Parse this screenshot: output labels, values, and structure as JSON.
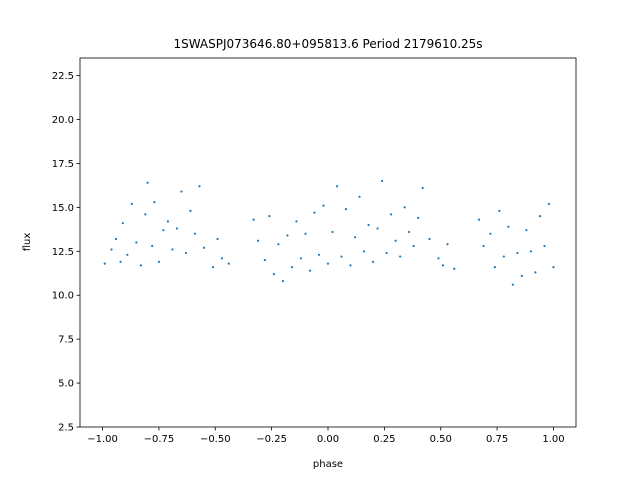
{
  "chart_data": {
    "type": "scatter",
    "title": "1SWASPJ073646.80+095813.6 Period 2179610.25s",
    "xlabel": "phase",
    "ylabel": "flux",
    "xlim": [
      -1.1,
      1.1
    ],
    "ylim": [
      2.5,
      23.5
    ],
    "xticks": [
      -1.0,
      -0.75,
      -0.5,
      -0.25,
      0.0,
      0.25,
      0.5,
      0.75,
      1.0
    ],
    "xtick_labels": [
      "−1.00",
      "−0.75",
      "−0.50",
      "−0.25",
      "0.00",
      "0.25",
      "0.50",
      "0.75",
      "1.00"
    ],
    "yticks": [
      2.5,
      5.0,
      7.5,
      10.0,
      12.5,
      15.0,
      17.5,
      20.0,
      22.5
    ],
    "ytick_labels": [
      "2.5",
      "5.0",
      "7.5",
      "10.0",
      "12.5",
      "15.0",
      "17.5",
      "20.0",
      "22.5"
    ],
    "grid": false,
    "marker_color": "#1f77b4",
    "series": [
      {
        "x": [
          -0.99,
          -0.96,
          -0.94,
          -0.92,
          -0.91,
          -0.89,
          -0.87,
          -0.85,
          -0.83,
          -0.81,
          -0.8,
          -0.78,
          -0.77,
          -0.75,
          -0.73,
          -0.71,
          -0.69,
          -0.67,
          -0.65,
          -0.63,
          -0.61,
          -0.59,
          -0.57,
          -0.55,
          -0.51,
          -0.49,
          -0.47,
          -0.44,
          -0.33,
          -0.31,
          -0.28,
          -0.26,
          -0.24,
          -0.22,
          -0.2,
          -0.18,
          -0.16,
          -0.14,
          -0.12,
          -0.1,
          -0.08,
          -0.06,
          -0.04,
          -0.02,
          0.0,
          0.02,
          0.04,
          0.06,
          0.08,
          0.1,
          0.12,
          0.14,
          0.16,
          0.18,
          0.2,
          0.22,
          0.24,
          0.26,
          0.28,
          0.3,
          0.32,
          0.34,
          0.36,
          0.38,
          0.4,
          0.42,
          0.45,
          0.49,
          0.51,
          0.53,
          0.56,
          0.67,
          0.69,
          0.72,
          0.74,
          0.76,
          0.78,
          0.8,
          0.82,
          0.84,
          0.86,
          0.88,
          0.9,
          0.92,
          0.94,
          0.96,
          0.98,
          1.0
        ],
        "y": [
          11.8,
          12.6,
          13.2,
          11.9,
          14.1,
          12.3,
          15.2,
          13.0,
          11.7,
          14.6,
          16.4,
          12.8,
          15.3,
          11.9,
          13.7,
          14.2,
          12.6,
          13.8,
          15.9,
          12.4,
          14.8,
          13.5,
          16.2,
          12.7,
          11.6,
          13.2,
          12.1,
          11.8,
          14.3,
          13.1,
          12.0,
          14.5,
          11.2,
          12.9,
          10.8,
          13.4,
          11.6,
          14.2,
          12.1,
          13.5,
          11.4,
          14.7,
          12.3,
          15.1,
          11.8,
          13.6,
          16.2,
          12.2,
          14.9,
          11.7,
          13.3,
          15.6,
          12.5,
          14.0,
          11.9,
          13.8,
          16.5,
          12.4,
          14.6,
          13.1,
          12.2,
          15.0,
          13.6,
          12.8,
          14.4,
          16.1,
          13.2,
          12.1,
          11.7,
          12.9,
          11.5,
          14.3,
          12.8,
          13.5,
          11.6,
          14.8,
          12.2,
          13.9,
          10.6,
          12.4,
          11.1,
          13.7,
          12.5,
          11.3,
          14.5,
          12.8,
          15.2,
          11.6
        ]
      }
    ]
  }
}
